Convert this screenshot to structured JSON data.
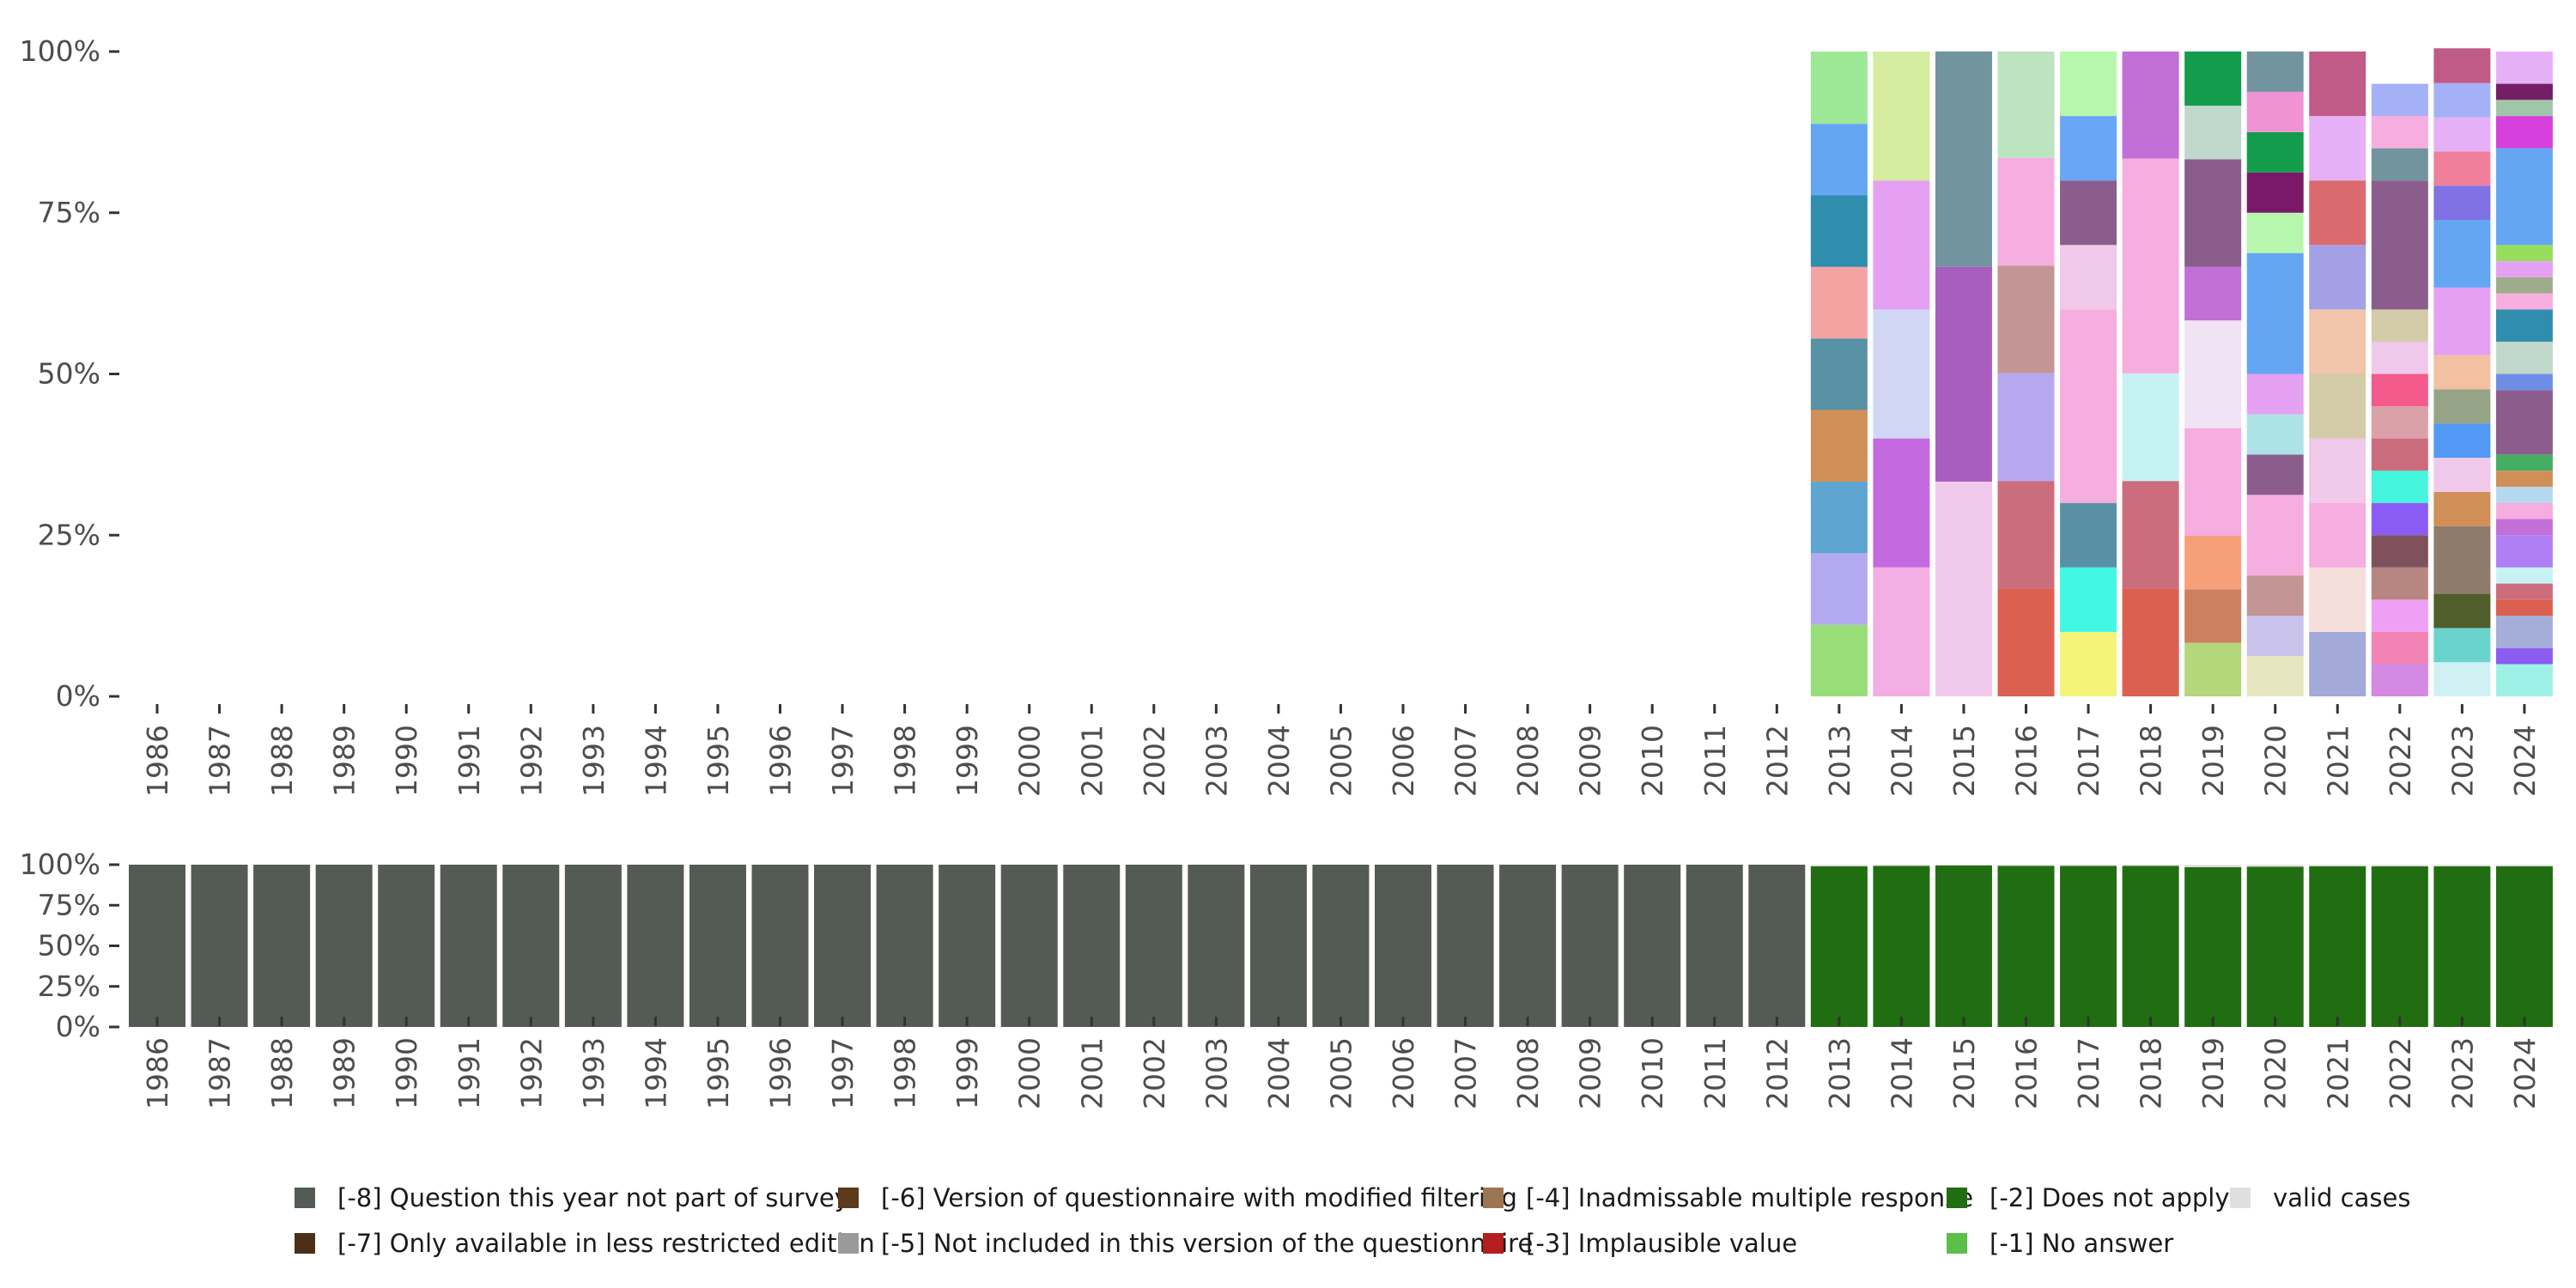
{
  "chart_data": [
    {
      "type": "bar",
      "stacked": true,
      "name": "valid-values-distribution",
      "title": "",
      "xlabel": "",
      "ylabel": "",
      "ylim": [
        0,
        1
      ],
      "y_ticks": [
        0,
        0.25,
        0.5,
        0.75,
        1.0
      ],
      "y_tick_labels": [
        "0%",
        "25%",
        "50%",
        "75%",
        "100%"
      ],
      "categories": [
        "1986",
        "1987",
        "1988",
        "1989",
        "1990",
        "1991",
        "1992",
        "1993",
        "1994",
        "1995",
        "1996",
        "1997",
        "1998",
        "1999",
        "2000",
        "2001",
        "2002",
        "2003",
        "2004",
        "2005",
        "2006",
        "2007",
        "2008",
        "2009",
        "2010",
        "2011",
        "2012",
        "2013",
        "2014",
        "2015",
        "2016",
        "2017",
        "2018",
        "2019",
        "2020",
        "2021",
        "2022",
        "2023",
        "2024"
      ],
      "stacks": {
        "2013": [
          {
            "value": 0.111,
            "color": "#98dd78"
          },
          {
            "value": 0.111,
            "color": "#b3a9f1"
          },
          {
            "value": 0.111,
            "color": "#5ea5d1"
          },
          {
            "value": 0.111,
            "color": "#cf8f56"
          },
          {
            "value": 0.111,
            "color": "#5991a5"
          },
          {
            "value": 0.111,
            "color": "#f4a3a3"
          },
          {
            "value": 0.111,
            "color": "#2f8ead"
          },
          {
            "value": 0.111,
            "color": "#65a6f3"
          },
          {
            "value": 0.112,
            "color": "#9de896"
          }
        ],
        "2014": [
          {
            "value": 0.2,
            "color": "#f3aee3"
          },
          {
            "value": 0.2,
            "color": "#c46ae1"
          },
          {
            "value": 0.2,
            "color": "#d1d6f4"
          },
          {
            "value": 0.2,
            "color": "#e5a1f1"
          },
          {
            "value": 0.2,
            "color": "#d4eda0"
          }
        ],
        "2015": [
          {
            "value": 0.333,
            "color": "#f1c9ec"
          },
          {
            "value": 0.333,
            "color": "#a95ebf"
          },
          {
            "value": 0.334,
            "color": "#71949f"
          }
        ],
        "2016": [
          {
            "value": 0.167,
            "color": "#dc6050"
          },
          {
            "value": 0.167,
            "color": "#cc6d7d"
          },
          {
            "value": 0.167,
            "color": "#b6a7f1"
          },
          {
            "value": 0.167,
            "color": "#c39595"
          },
          {
            "value": 0.167,
            "color": "#f6addf"
          },
          {
            "value": 0.165,
            "color": "#bce4bf"
          }
        ],
        "2017": [
          {
            "value": 0.1,
            "color": "#f4f47a"
          },
          {
            "value": 0.1,
            "color": "#40f8e4"
          },
          {
            "value": 0.1,
            "color": "#5891a5"
          },
          {
            "value": 0.3,
            "color": "#f6addf"
          },
          {
            "value": 0.1,
            "color": "#f0c8ea"
          },
          {
            "value": 0.1,
            "color": "#8b5d8d"
          },
          {
            "value": 0.1,
            "color": "#69a6f7"
          },
          {
            "value": 0.1,
            "color": "#b6f7ad"
          }
        ],
        "2018": [
          {
            "value": 0.167,
            "color": "#dc6050"
          },
          {
            "value": 0.167,
            "color": "#cc6d7d"
          },
          {
            "value": 0.167,
            "color": "#c7f2f3"
          },
          {
            "value": 0.333,
            "color": "#f6addf"
          },
          {
            "value": 0.166,
            "color": "#c26fd7"
          }
        ],
        "2019": [
          {
            "value": 0.083,
            "color": "#b3d77a"
          },
          {
            "value": 0.083,
            "color": "#cd805e"
          },
          {
            "value": 0.083,
            "color": "#f6a07a"
          },
          {
            "value": 0.167,
            "color": "#f6addf"
          },
          {
            "value": 0.167,
            "color": "#f0e3f4"
          },
          {
            "value": 0.083,
            "color": "#c26fd7"
          },
          {
            "value": 0.167,
            "color": "#8b5d8d"
          },
          {
            "value": 0.083,
            "color": "#c0d8cb"
          },
          {
            "value": 0.084,
            "color": "#149c4d"
          }
        ],
        "2020": [
          {
            "value": 0.0625,
            "color": "#e6e6c1"
          },
          {
            "value": 0.0625,
            "color": "#c9c3ec"
          },
          {
            "value": 0.0625,
            "color": "#c39595"
          },
          {
            "value": 0.125,
            "color": "#f6addf"
          },
          {
            "value": 0.0625,
            "color": "#8b5d8d"
          },
          {
            "value": 0.0625,
            "color": "#ade2e6"
          },
          {
            "value": 0.0625,
            "color": "#e5a1f1"
          },
          {
            "value": 0.1875,
            "color": "#65a6f3"
          },
          {
            "value": 0.0625,
            "color": "#b6f7ad"
          },
          {
            "value": 0.0625,
            "color": "#7a186a"
          },
          {
            "value": 0.0625,
            "color": "#149c4d"
          },
          {
            "value": 0.0625,
            "color": "#f093d5"
          },
          {
            "value": 0.0625,
            "color": "#71949f"
          }
        ],
        "2021": [
          {
            "value": 0.1,
            "color": "#a3aad9"
          },
          {
            "value": 0.1,
            "color": "#f5dedb"
          },
          {
            "value": 0.1,
            "color": "#f6addf"
          },
          {
            "value": 0.1,
            "color": "#f0c8ea"
          },
          {
            "value": 0.1,
            "color": "#d4cba8"
          },
          {
            "value": 0.1,
            "color": "#f2c4a9"
          },
          {
            "value": 0.1,
            "color": "#a4a0e6"
          },
          {
            "value": 0.1,
            "color": "#db6a6f"
          },
          {
            "value": 0.1,
            "color": "#e6b0f7"
          },
          {
            "value": 0.1,
            "color": "#c05b88"
          }
        ],
        "2022": [
          {
            "value": 0.05,
            "color": "#d489e3"
          },
          {
            "value": 0.05,
            "color": "#f383b4"
          },
          {
            "value": 0.05,
            "color": "#eea0f4"
          },
          {
            "value": 0.05,
            "color": "#b88680"
          },
          {
            "value": 0.05,
            "color": "#7f515d"
          },
          {
            "value": 0.05,
            "color": "#8b5cf5"
          },
          {
            "value": 0.05,
            "color": "#44f4dd"
          },
          {
            "value": 0.05,
            "color": "#cc6d7d"
          },
          {
            "value": 0.05,
            "color": "#dba1a8"
          },
          {
            "value": 0.05,
            "color": "#f55a8c"
          },
          {
            "value": 0.05,
            "color": "#f0c8ea"
          },
          {
            "value": 0.05,
            "color": "#d4cba8"
          },
          {
            "value": 0.2,
            "color": "#8b5d8d"
          },
          {
            "value": 0.05,
            "color": "#71949f"
          },
          {
            "value": 0.05,
            "color": "#f6addf"
          },
          {
            "value": 0.05,
            "color": "#a4b1f6"
          }
        ],
        "2023": [
          {
            "value": 0.053,
            "color": "#cff1f4"
          },
          {
            "value": 0.053,
            "color": "#6ad3cb"
          },
          {
            "value": 0.053,
            "color": "#4f5e2a"
          },
          {
            "value": 0.105,
            "color": "#8f7b6b"
          },
          {
            "value": 0.053,
            "color": "#cf8f56"
          },
          {
            "value": 0.053,
            "color": "#f0c8ea"
          },
          {
            "value": 0.053,
            "color": "#529af5"
          },
          {
            "value": 0.053,
            "color": "#95a486"
          },
          {
            "value": 0.053,
            "color": "#f4c0a2"
          },
          {
            "value": 0.105,
            "color": "#e5a1f1"
          },
          {
            "value": 0.105,
            "color": "#65a6f3"
          },
          {
            "value": 0.053,
            "color": "#8071e5"
          },
          {
            "value": 0.053,
            "color": "#f07f9b"
          },
          {
            "value": 0.053,
            "color": "#e6b0f7"
          },
          {
            "value": 0.053,
            "color": "#a4b1f6"
          },
          {
            "value": 0.054,
            "color": "#c05b88"
          }
        ],
        "2024": [
          {
            "value": 0.05,
            "color": "#9ef1e6"
          },
          {
            "value": 0.025,
            "color": "#8c5cf2"
          },
          {
            "value": 0.05,
            "color": "#a4aed9"
          },
          {
            "value": 0.025,
            "color": "#dc6050"
          },
          {
            "value": 0.025,
            "color": "#cc6d7d"
          },
          {
            "value": 0.025,
            "color": "#c7f2f3"
          },
          {
            "value": 0.05,
            "color": "#b07ef5"
          },
          {
            "value": 0.025,
            "color": "#c26fd7"
          },
          {
            "value": 0.025,
            "color": "#f6addf"
          },
          {
            "value": 0.025,
            "color": "#b7d7f1"
          },
          {
            "value": 0.025,
            "color": "#cf8f56"
          },
          {
            "value": 0.025,
            "color": "#46ae63"
          },
          {
            "value": 0.1,
            "color": "#8b5d8d"
          },
          {
            "value": 0.025,
            "color": "#6e8ee6"
          },
          {
            "value": 0.05,
            "color": "#c0d8cb"
          },
          {
            "value": 0.05,
            "color": "#2f8ead"
          },
          {
            "value": 0.025,
            "color": "#f6addf"
          },
          {
            "value": 0.025,
            "color": "#9eac8b"
          },
          {
            "value": 0.025,
            "color": "#e5a1f1"
          },
          {
            "value": 0.025,
            "color": "#96dd5c"
          },
          {
            "value": 0.15,
            "color": "#65a6f3"
          },
          {
            "value": 0.05,
            "color": "#d641dd"
          },
          {
            "value": 0.025,
            "color": "#9fc6a8"
          },
          {
            "value": 0.025,
            "color": "#731e66"
          },
          {
            "value": 0.05,
            "color": "#e6b0f7"
          }
        ]
      }
    },
    {
      "type": "bar",
      "stacked": true,
      "name": "missing-values-distribution",
      "title": "",
      "xlabel": "",
      "ylabel": "",
      "ylim": [
        0,
        1
      ],
      "y_ticks": [
        0,
        0.25,
        0.5,
        0.75,
        1.0
      ],
      "y_tick_labels": [
        "0%",
        "25%",
        "50%",
        "75%",
        "100%"
      ],
      "categories": [
        "1986",
        "1987",
        "1988",
        "1989",
        "1990",
        "1991",
        "1992",
        "1993",
        "1994",
        "1995",
        "1996",
        "1997",
        "1998",
        "1999",
        "2000",
        "2001",
        "2002",
        "2003",
        "2004",
        "2005",
        "2006",
        "2007",
        "2008",
        "2009",
        "2010",
        "2011",
        "2012",
        "2013",
        "2014",
        "2015",
        "2016",
        "2017",
        "2018",
        "2019",
        "2020",
        "2021",
        "2022",
        "2023",
        "2024"
      ],
      "series": [
        {
          "name": "[-8] Question this year not part of survey",
          "color": "#545b55",
          "values": [
            1,
            1,
            1,
            1,
            1,
            1,
            1,
            1,
            1,
            1,
            1,
            1,
            1,
            1,
            1,
            1,
            1,
            1,
            1,
            1,
            1,
            1,
            1,
            1,
            1,
            1,
            1,
            0,
            0,
            0,
            0,
            0,
            0,
            0,
            0,
            0,
            0,
            0,
            0
          ]
        },
        {
          "name": "[-2] Does not apply",
          "color": "#216d12",
          "values": [
            0,
            0,
            0,
            0,
            0,
            0,
            0,
            0,
            0,
            0,
            0,
            0,
            0,
            0,
            0,
            0,
            0,
            0,
            0,
            0,
            0,
            0,
            0,
            0,
            0,
            0,
            0,
            0.99,
            0.992,
            0.995,
            0.993,
            0.992,
            0.993,
            0.985,
            0.988,
            0.99,
            0.99,
            0.99,
            0.99
          ]
        },
        {
          "name": "valid cases",
          "color": "#dfe0dd",
          "values": [
            0,
            0,
            0,
            0,
            0,
            0,
            0,
            0,
            0,
            0,
            0,
            0,
            0,
            0,
            0,
            0,
            0,
            0,
            0,
            0,
            0,
            0,
            0,
            0,
            0,
            0,
            0,
            0.01,
            0.008,
            0.005,
            0.007,
            0.008,
            0.007,
            0.015,
            0.012,
            0.01,
            0.01,
            0.01,
            0.01
          ]
        }
      ]
    }
  ],
  "legend": {
    "placement": "bottom",
    "items": [
      {
        "label": "[-8] Question this year not part of survey",
        "color": "#545b55"
      },
      {
        "label": "[-7] Only available in less restricted edition",
        "color": "#4d2e16"
      },
      {
        "label": "[-6] Version of questionnaire with modified filtering",
        "color": "#5c3a1c"
      },
      {
        "label": "[-5] Not included in this version of the questionnaire",
        "color": "#9a9a9a"
      },
      {
        "label": "[-4] Inadmissable multiple response",
        "color": "#9c7654"
      },
      {
        "label": "[-3] Implausible value",
        "color": "#b31e1e"
      },
      {
        "label": "[-2] Does not apply",
        "color": "#216d12"
      },
      {
        "label": "[-1] No answer",
        "color": "#5bbf4a"
      },
      {
        "label": "valid cases",
        "color": "#dfe0dd"
      }
    ]
  }
}
